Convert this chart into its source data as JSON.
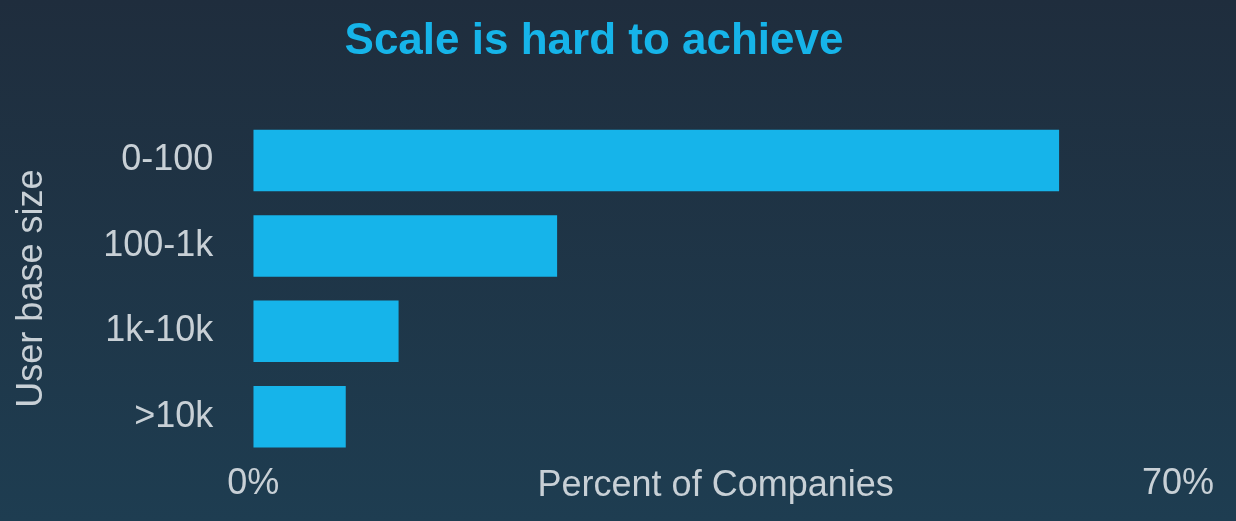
{
  "chart_data": {
    "type": "bar",
    "title": "Scale is hard to achieve",
    "orientation": "horizontal",
    "categories": [
      "0-100",
      "100-1k",
      "1k-10k",
      ">10k"
    ],
    "values": [
      61,
      23,
      11,
      7
    ],
    "color": "#16b4ea",
    "xlabel": "Percent of Companies",
    "ylabel": "User base size",
    "xlim": [
      0,
      70
    ],
    "xticks": [
      {
        "value": 0,
        "label": "0%"
      },
      {
        "value": 70,
        "label": "70%"
      }
    ],
    "grid": false,
    "legend": false
  }
}
